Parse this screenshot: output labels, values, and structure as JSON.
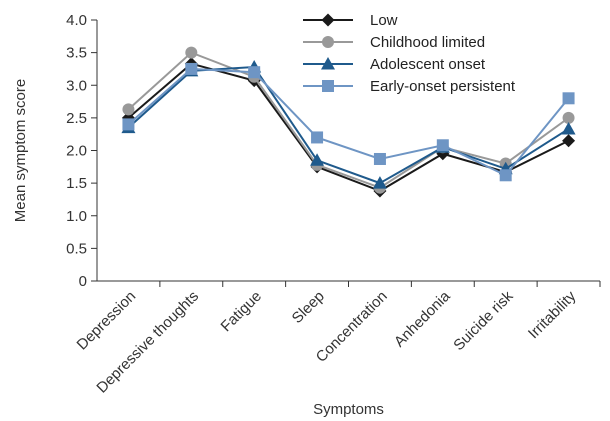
{
  "chart_data": {
    "type": "line",
    "xlabel": "Symptoms",
    "ylabel": "Mean symptom score",
    "ylim": [
      0,
      4
    ],
    "yticks": [
      0,
      0.5,
      1.0,
      1.5,
      2.0,
      2.5,
      3.0,
      3.5,
      4.0
    ],
    "ytick_labels": [
      "0",
      "0.5",
      "1.0",
      "1.5",
      "2.0",
      "2.5",
      "3.0",
      "3.5",
      "4.0"
    ],
    "grid": false,
    "legend_position": "top-right",
    "categories": [
      "Depression",
      "Depressive thoughts",
      "Fatigue",
      "Sleep",
      "Concentration",
      "Anhedonia",
      "Suicide risk",
      "Irritability"
    ],
    "series": [
      {
        "name": "Low",
        "marker": "diamond",
        "color": "#1a1a1a",
        "values": [
          2.5,
          3.33,
          3.07,
          1.75,
          1.38,
          1.95,
          1.67,
          2.15
        ]
      },
      {
        "name": "Childhood limited",
        "marker": "circle",
        "color": "#999999",
        "values": [
          2.63,
          3.5,
          3.13,
          1.78,
          1.43,
          2.05,
          1.8,
          2.5
        ]
      },
      {
        "name": "Adolescent onset",
        "marker": "triangle",
        "color": "#1f5a8c",
        "values": [
          2.35,
          3.22,
          3.28,
          1.85,
          1.5,
          2.05,
          1.72,
          2.33
        ]
      },
      {
        "name": "Early-onset persistent",
        "marker": "square",
        "color": "#6e95c4",
        "values": [
          2.4,
          3.25,
          3.2,
          2.2,
          1.87,
          2.08,
          1.62,
          2.8
        ]
      }
    ]
  }
}
